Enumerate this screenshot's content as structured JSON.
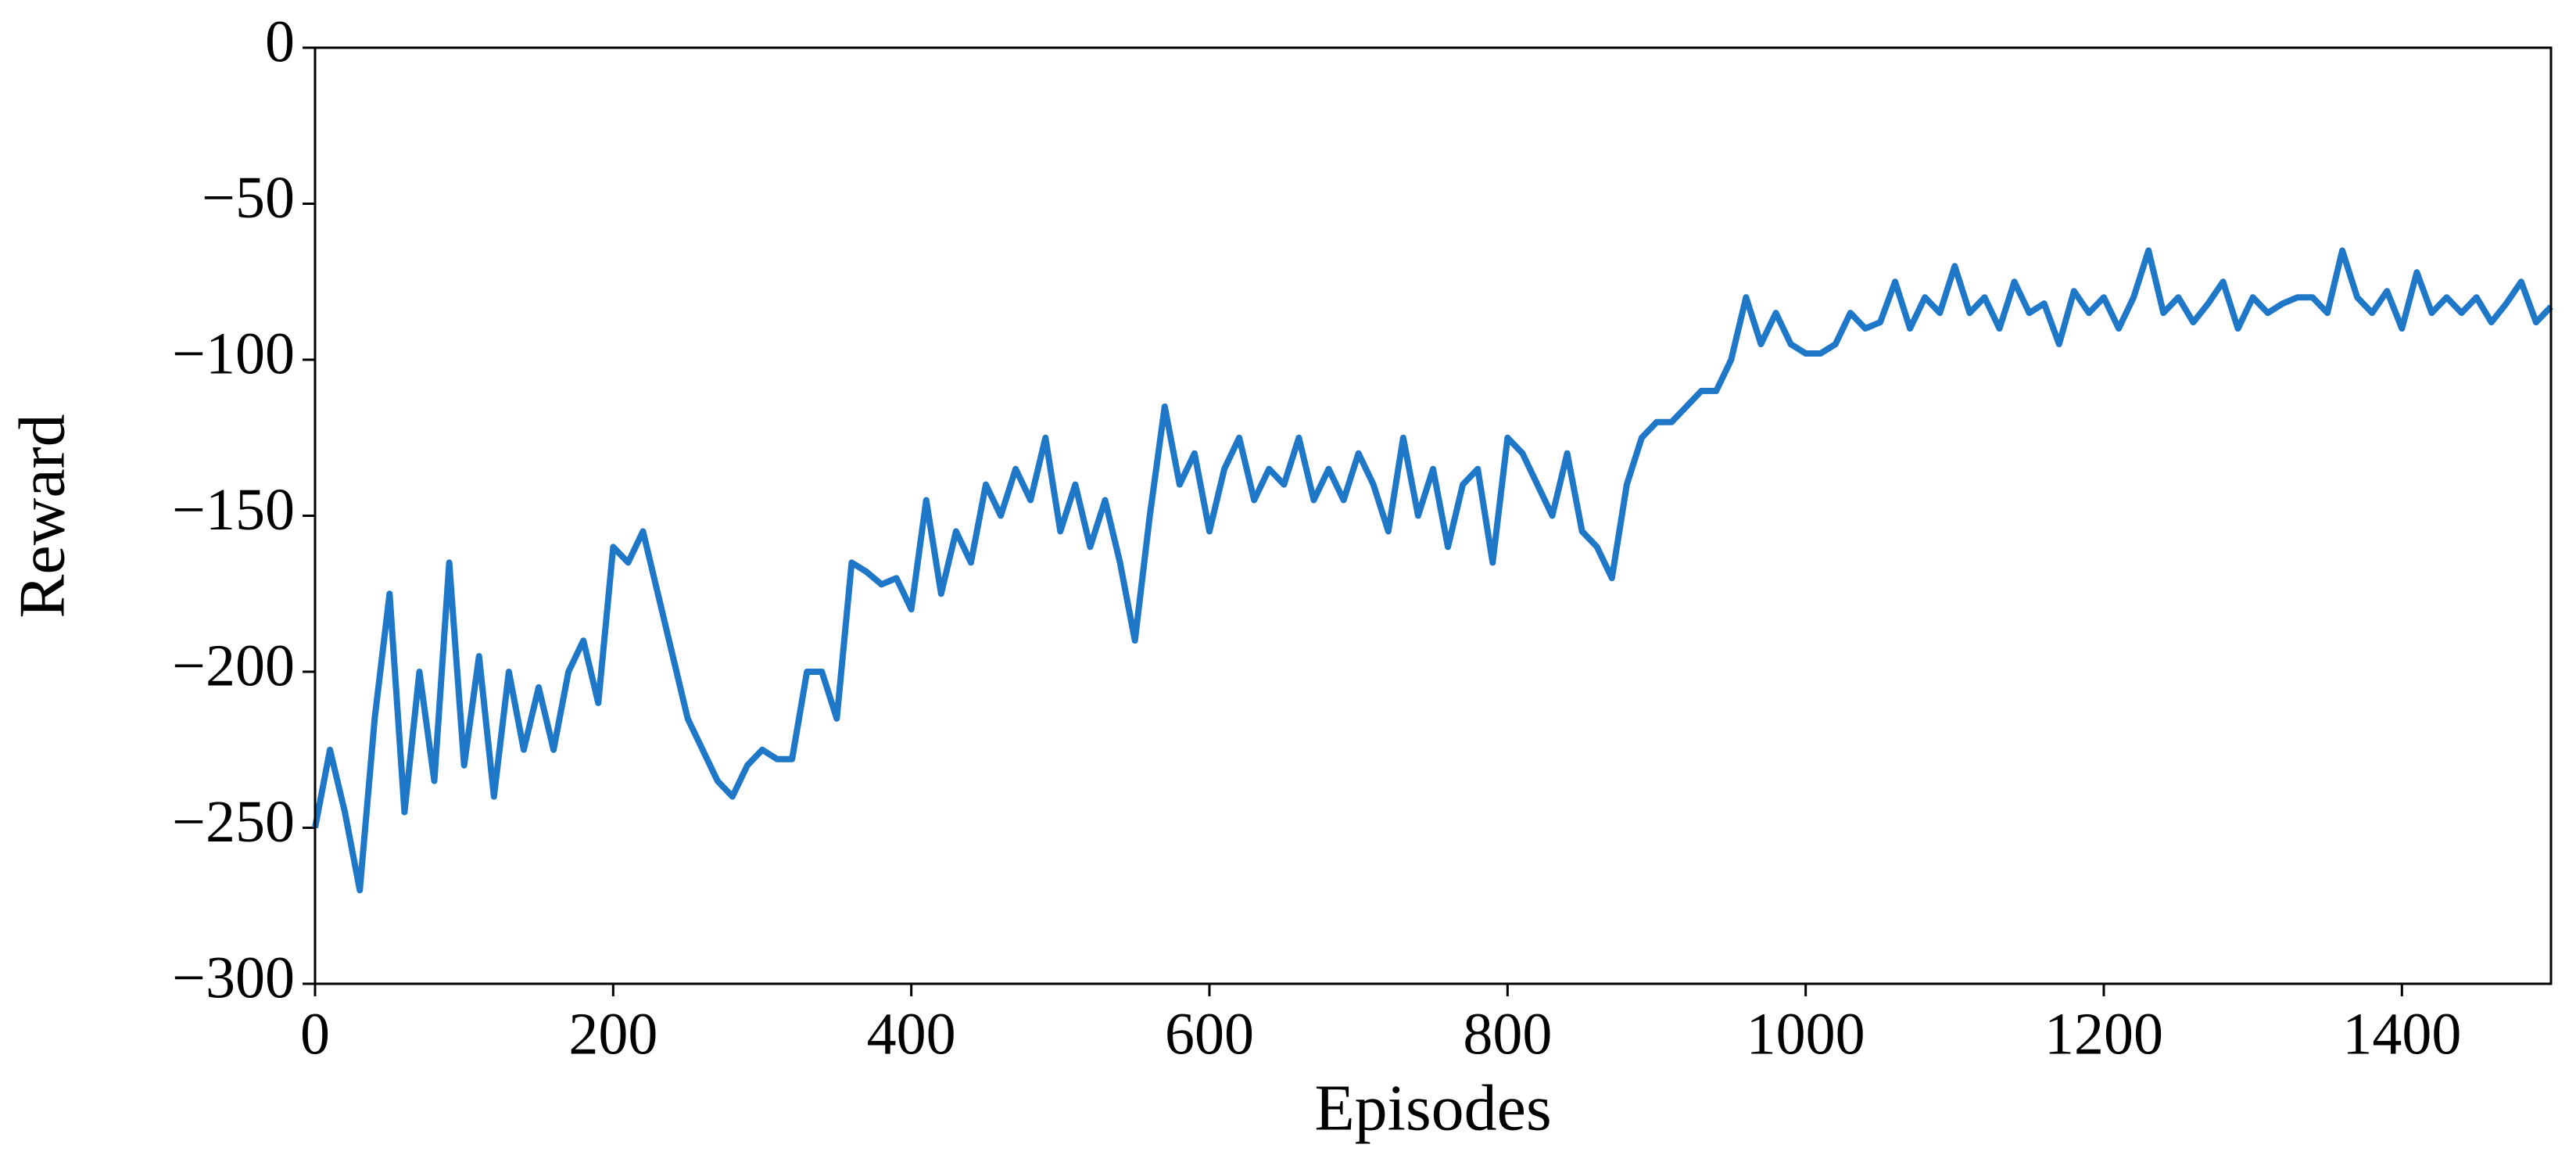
{
  "chart_data": {
    "type": "line",
    "xlabel": "Episodes",
    "ylabel": "Reward",
    "x": [
      0,
      10,
      20,
      30,
      40,
      50,
      60,
      70,
      80,
      90,
      100,
      110,
      120,
      130,
      140,
      150,
      160,
      170,
      180,
      190,
      200,
      210,
      220,
      230,
      240,
      250,
      260,
      270,
      280,
      290,
      300,
      310,
      320,
      330,
      340,
      350,
      360,
      370,
      380,
      390,
      400,
      410,
      420,
      430,
      440,
      450,
      460,
      470,
      480,
      490,
      500,
      510,
      520,
      530,
      540,
      550,
      560,
      570,
      580,
      590,
      600,
      610,
      620,
      630,
      640,
      650,
      660,
      670,
      680,
      690,
      700,
      710,
      720,
      730,
      740,
      750,
      760,
      770,
      780,
      790,
      800,
      810,
      820,
      830,
      840,
      850,
      860,
      870,
      880,
      890,
      900,
      910,
      920,
      930,
      940,
      950,
      960,
      970,
      980,
      990,
      1000,
      1010,
      1020,
      1030,
      1040,
      1050,
      1060,
      1070,
      1080,
      1090,
      1100,
      1110,
      1120,
      1130,
      1140,
      1150,
      1160,
      1170,
      1180,
      1190,
      1200,
      1210,
      1220,
      1230,
      1240,
      1250,
      1260,
      1270,
      1280,
      1290,
      1300,
      1310,
      1320,
      1330,
      1340,
      1350,
      1360,
      1370,
      1380,
      1390,
      1400,
      1410,
      1420,
      1430,
      1440,
      1450,
      1460,
      1470,
      1480,
      1490,
      1500
    ],
    "values": [
      -250,
      -225,
      -245,
      -270,
      -215,
      -175,
      -245,
      -200,
      -235,
      -165,
      -230,
      -195,
      -240,
      -200,
      -225,
      -205,
      -225,
      -200,
      -190,
      -210,
      -160,
      -165,
      -155,
      -175,
      -195,
      -215,
      -225,
      -235,
      -240,
      -230,
      -225,
      -228,
      -228,
      -200,
      -200,
      -215,
      -165,
      -168,
      -172,
      -170,
      -180,
      -145,
      -175,
      -155,
      -165,
      -140,
      -150,
      -135,
      -145,
      -125,
      -155,
      -140,
      -160,
      -145,
      -165,
      -190,
      -150,
      -115,
      -140,
      -130,
      -155,
      -135,
      -125,
      -145,
      -135,
      -140,
      -125,
      -145,
      -135,
      -145,
      -130,
      -140,
      -155,
      -125,
      -150,
      -135,
      -160,
      -140,
      -135,
      -165,
      -125,
      -130,
      -140,
      -150,
      -130,
      -155,
      -160,
      -170,
      -140,
      -125,
      -120,
      -120,
      -115,
      -110,
      -110,
      -100,
      -80,
      -95,
      -85,
      -95,
      -98,
      -98,
      -95,
      -85,
      -90,
      -88,
      -75,
      -90,
      -80,
      -85,
      -70,
      -85,
      -80,
      -90,
      -75,
      -85,
      -82,
      -95,
      -78,
      -85,
      -80,
      -90,
      -80,
      -65,
      -85,
      -80,
      -88,
      -82,
      -75,
      -90,
      -80,
      -85,
      -82,
      -80,
      -80,
      -85,
      -65,
      -80,
      -85,
      -78,
      -90,
      -72,
      -85,
      -80,
      -85,
      -80,
      -88,
      -82,
      -75,
      -88,
      -83
    ],
    "color": "#1f77c8",
    "xlim": [
      0,
      1500
    ],
    "xticks": [
      0,
      200,
      400,
      600,
      800,
      1000,
      1200,
      1400
    ],
    "ylim": [
      -300,
      0
    ],
    "yticks": [
      {
        "value": -300,
        "label": "−300"
      },
      {
        "value": -250,
        "label": "−250"
      },
      {
        "value": -200,
        "label": "−200"
      },
      {
        "value": -150,
        "label": "−150"
      },
      {
        "value": -100,
        "label": "−100"
      },
      {
        "value": -50,
        "label": "−50"
      },
      0
    ],
    "grid": false
  }
}
